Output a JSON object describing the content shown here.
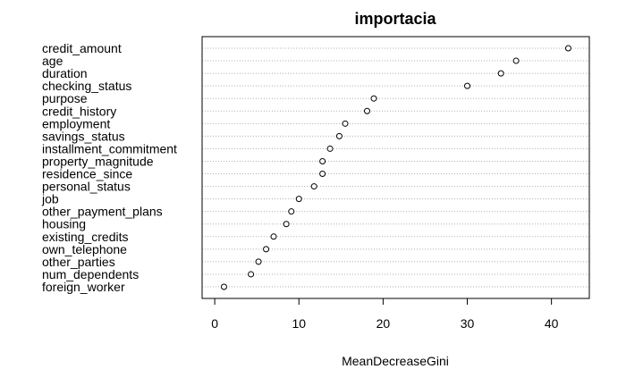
{
  "chart_data": {
    "type": "scatter",
    "title": "importacia",
    "xlabel": "MeanDecreaseGini",
    "ylabel": "",
    "categories": [
      "credit_amount",
      "age",
      "duration",
      "checking_status",
      "purpose",
      "credit_history",
      "employment",
      "savings_status",
      "installment_commitment",
      "property_magnitude",
      "residence_since",
      "personal_status",
      "job",
      "other_payment_plans",
      "housing",
      "existing_credits",
      "own_telephone",
      "other_parties",
      "num_dependents",
      "foreign_worker"
    ],
    "values": [
      42.0,
      35.8,
      34.0,
      30.0,
      18.9,
      18.1,
      15.5,
      14.8,
      13.7,
      12.8,
      12.8,
      11.8,
      10.0,
      9.1,
      8.5,
      7.0,
      6.1,
      5.2,
      4.3,
      1.1
    ],
    "xlim": [
      -1.5,
      44.5
    ],
    "xticks": [
      "0",
      "10",
      "20",
      "30",
      "40"
    ],
    "grid": "dotted-horizontal"
  }
}
